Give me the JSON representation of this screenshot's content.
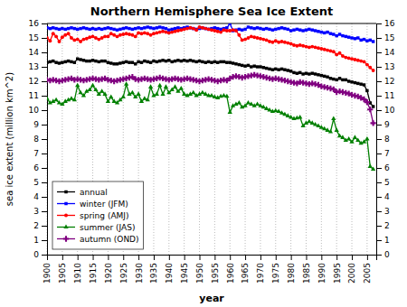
{
  "chart_data": {
    "type": "line",
    "title": "Northern Hemisphere Sea Ice Extent",
    "x_label": "year",
    "y_label": "sea ice extent (million km^2)",
    "x": [
      1900,
      1901,
      1902,
      1903,
      1904,
      1905,
      1906,
      1907,
      1908,
      1909,
      1910,
      1911,
      1912,
      1913,
      1914,
      1915,
      1916,
      1917,
      1918,
      1919,
      1920,
      1921,
      1922,
      1923,
      1924,
      1925,
      1926,
      1927,
      1928,
      1929,
      1930,
      1931,
      1932,
      1933,
      1934,
      1935,
      1936,
      1937,
      1938,
      1939,
      1940,
      1941,
      1942,
      1943,
      1944,
      1945,
      1946,
      1947,
      1948,
      1949,
      1950,
      1951,
      1952,
      1953,
      1954,
      1955,
      1956,
      1957,
      1958,
      1959,
      1960,
      1961,
      1962,
      1963,
      1964,
      1965,
      1966,
      1967,
      1968,
      1969,
      1970,
      1971,
      1972,
      1973,
      1974,
      1975,
      1976,
      1977,
      1978,
      1979,
      1980,
      1981,
      1982,
      1983,
      1984,
      1985,
      1986,
      1987,
      1988,
      1989,
      1990,
      1991,
      1992,
      1993,
      1994,
      1995,
      1996,
      1997,
      1998,
      1999,
      2000,
      2001,
      2002,
      2003,
      2004,
      2005,
      2006,
      2007
    ],
    "series": [
      {
        "name": "annual",
        "color": "black",
        "marker": "square",
        "values": [
          13.3,
          13.35,
          13.4,
          13.3,
          13.25,
          13.3,
          13.35,
          13.4,
          13.35,
          13.3,
          13.55,
          13.5,
          13.45,
          13.4,
          13.4,
          13.45,
          13.4,
          13.35,
          13.4,
          13.4,
          13.3,
          13.25,
          13.2,
          13.2,
          13.25,
          13.3,
          13.35,
          13.3,
          13.3,
          13.2,
          13.35,
          13.3,
          13.4,
          13.35,
          13.3,
          13.4,
          13.35,
          13.4,
          13.45,
          13.4,
          13.45,
          13.35,
          13.4,
          13.45,
          13.4,
          13.45,
          13.4,
          13.45,
          13.4,
          13.35,
          13.4,
          13.35,
          13.3,
          13.35,
          13.3,
          13.35,
          13.3,
          13.35,
          13.35,
          13.3,
          13.3,
          13.25,
          13.2,
          13.15,
          13.1,
          13.05,
          13.1,
          13.0,
          13.05,
          13.0,
          13.0,
          12.95,
          12.9,
          12.85,
          12.8,
          12.85,
          12.8,
          12.85,
          12.8,
          12.75,
          12.7,
          12.6,
          12.55,
          12.6,
          12.5,
          12.55,
          12.5,
          12.55,
          12.5,
          12.45,
          12.4,
          12.35,
          12.3,
          12.2,
          12.15,
          12.1,
          12.2,
          12.1,
          12.1,
          12.0,
          11.95,
          11.9,
          11.85,
          11.8,
          11.75,
          11.35,
          10.5,
          10.25
        ]
      },
      {
        "name": "winter (JFM)",
        "color": "blue",
        "marker": "square",
        "values": [
          15.7,
          15.65,
          15.7,
          15.65,
          15.6,
          15.65,
          15.6,
          15.65,
          15.7,
          15.65,
          15.6,
          15.65,
          15.7,
          15.65,
          15.6,
          15.65,
          15.6,
          15.65,
          15.6,
          15.65,
          15.7,
          15.65,
          15.6,
          15.55,
          15.6,
          15.65,
          15.7,
          15.65,
          15.6,
          15.65,
          15.7,
          15.65,
          15.7,
          15.75,
          15.7,
          15.65,
          15.7,
          15.75,
          15.7,
          15.65,
          15.55,
          15.6,
          15.65,
          15.7,
          15.65,
          15.7,
          15.75,
          15.7,
          15.65,
          15.6,
          15.65,
          15.7,
          15.65,
          15.6,
          15.65,
          15.7,
          15.65,
          15.6,
          15.65,
          15.7,
          16.0,
          15.5,
          15.55,
          15.6,
          15.55,
          15.6,
          15.75,
          15.7,
          15.65,
          15.7,
          15.65,
          15.6,
          15.65,
          15.6,
          15.55,
          15.6,
          15.65,
          15.7,
          15.65,
          15.6,
          15.5,
          15.55,
          15.6,
          15.55,
          15.5,
          15.55,
          15.6,
          15.55,
          15.5,
          15.45,
          15.4,
          15.35,
          15.4,
          15.3,
          15.25,
          15.15,
          15.25,
          15.15,
          15.1,
          15.05,
          15.0,
          14.95,
          15.0,
          14.85,
          14.9,
          14.8,
          14.85,
          14.75
        ]
      },
      {
        "name": "spring (AMJ)",
        "color": "red",
        "marker": "circle",
        "values": [
          15.0,
          14.8,
          15.3,
          15.1,
          14.75,
          15.05,
          15.2,
          15.3,
          15.0,
          14.85,
          14.9,
          14.75,
          14.9,
          14.95,
          15.05,
          15.1,
          15.0,
          14.9,
          15.0,
          15.1,
          15.1,
          15.3,
          15.2,
          15.1,
          15.2,
          15.25,
          15.3,
          15.25,
          15.2,
          15.1,
          15.35,
          15.3,
          15.35,
          15.3,
          15.2,
          15.3,
          15.35,
          15.4,
          15.45,
          15.4,
          15.35,
          15.4,
          15.45,
          15.5,
          15.55,
          15.6,
          15.65,
          15.7,
          15.65,
          15.55,
          15.75,
          15.7,
          15.65,
          15.6,
          15.55,
          15.5,
          15.45,
          15.4,
          15.55,
          15.5,
          15.5,
          15.55,
          15.5,
          15.2,
          14.85,
          14.9,
          15.0,
          15.1,
          15.05,
          15.0,
          14.95,
          14.9,
          14.85,
          14.75,
          14.7,
          14.8,
          14.7,
          14.75,
          14.7,
          14.65,
          14.6,
          14.5,
          14.45,
          14.5,
          14.45,
          14.4,
          14.35,
          14.4,
          14.35,
          14.3,
          14.25,
          14.2,
          14.15,
          14.1,
          14.05,
          13.85,
          13.95,
          13.75,
          13.65,
          13.6,
          13.55,
          13.5,
          13.45,
          13.4,
          13.35,
          13.15,
          12.95,
          12.75
        ]
      },
      {
        "name": "summer (JAS)",
        "color": "green",
        "marker": "triangle",
        "values": [
          10.8,
          10.5,
          10.6,
          10.7,
          10.5,
          10.4,
          10.6,
          10.7,
          10.8,
          10.7,
          11.7,
          11.2,
          11.0,
          11.3,
          11.4,
          11.7,
          11.4,
          11.1,
          11.3,
          11.1,
          10.6,
          10.9,
          10.6,
          10.5,
          10.7,
          10.9,
          11.8,
          11.1,
          11.2,
          10.9,
          11.1,
          10.6,
          10.8,
          10.7,
          11.6,
          11.0,
          11.1,
          11.7,
          11.1,
          11.6,
          11.2,
          11.4,
          11.6,
          11.3,
          11.5,
          11.1,
          11.0,
          11.1,
          11.2,
          11.0,
          11.1,
          11.2,
          11.1,
          11.0,
          11.0,
          10.9,
          10.85,
          10.95,
          11.0,
          10.95,
          9.85,
          10.3,
          10.4,
          10.5,
          10.2,
          10.3,
          10.5,
          10.4,
          10.3,
          10.4,
          10.3,
          10.2,
          10.1,
          10.0,
          9.9,
          9.95,
          9.9,
          9.8,
          9.7,
          9.6,
          9.5,
          9.4,
          9.45,
          9.5,
          8.9,
          9.1,
          9.2,
          9.1,
          9.0,
          8.9,
          8.8,
          8.7,
          8.6,
          8.5,
          9.4,
          8.6,
          8.2,
          8.1,
          7.9,
          8.0,
          7.8,
          8.1,
          7.9,
          7.7,
          7.8,
          8.0,
          6.1,
          5.9
        ]
      },
      {
        "name": "autumn (OND)",
        "color": "purple",
        "marker": "plus",
        "values": [
          12.1,
          12.05,
          12.1,
          12.05,
          12.0,
          12.05,
          12.1,
          12.15,
          12.2,
          12.1,
          12.15,
          12.1,
          12.05,
          12.1,
          12.15,
          12.2,
          12.15,
          12.1,
          12.15,
          12.2,
          12.1,
          12.05,
          12.0,
          12.05,
          12.1,
          12.15,
          12.2,
          12.25,
          12.3,
          12.15,
          12.1,
          12.15,
          12.2,
          12.15,
          12.1,
          12.15,
          12.2,
          12.25,
          12.2,
          12.15,
          12.1,
          12.15,
          12.2,
          12.15,
          12.1,
          12.15,
          12.2,
          12.15,
          12.1,
          12.05,
          12.0,
          12.05,
          12.1,
          12.15,
          12.1,
          12.05,
          12.0,
          12.05,
          12.1,
          12.05,
          12.2,
          12.3,
          12.35,
          12.3,
          12.25,
          12.3,
          12.35,
          12.4,
          12.45,
          12.4,
          12.35,
          12.3,
          12.25,
          12.2,
          12.15,
          12.2,
          12.15,
          12.1,
          12.05,
          12.0,
          11.95,
          11.9,
          11.85,
          11.95,
          11.9,
          11.85,
          11.8,
          11.85,
          11.8,
          11.75,
          11.65,
          11.6,
          11.55,
          11.5,
          11.45,
          11.25,
          11.3,
          11.25,
          11.2,
          11.15,
          11.05,
          11.0,
          10.95,
          10.85,
          10.75,
          10.55,
          10.05,
          9.1
        ]
      }
    ],
    "xlim": [
      1900,
      2008
    ],
    "xticks": [
      1900,
      1905,
      1910,
      1915,
      1920,
      1925,
      1930,
      1935,
      1940,
      1945,
      1950,
      1955,
      1960,
      1965,
      1970,
      1975,
      1980,
      1985,
      1990,
      1995,
      2000,
      2005
    ],
    "ylim": [
      0,
      16
    ],
    "yticks": [
      0,
      1,
      2,
      3,
      4,
      5,
      6,
      7,
      8,
      9,
      10,
      11,
      12,
      13,
      14,
      15,
      16
    ],
    "y2lim": [
      0,
      16
    ],
    "y2ticks": [
      0,
      1,
      2,
      3,
      4,
      5,
      6,
      7,
      8,
      9,
      10,
      11,
      12,
      13,
      14,
      15,
      16
    ],
    "grid": "x",
    "legend": "lower left"
  }
}
